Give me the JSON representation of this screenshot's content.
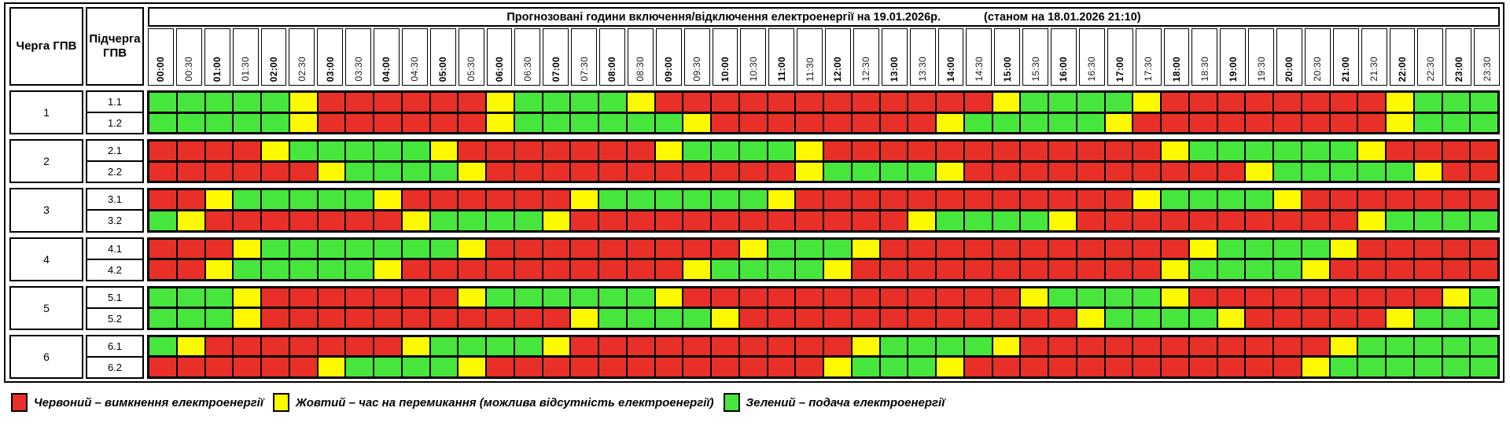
{
  "header": {
    "queue": "Черга ГПВ",
    "subqueue": "Підчерга ГПВ"
  },
  "title": {
    "main": "Прогнозовані години включення/відключення електроенергії на 19.01.2026р.",
    "as_of": "(станом на 18.01.2026 21:10)"
  },
  "colors": {
    "R": "#e82f28",
    "Y": "#fdf900",
    "G": "#46e63c",
    "border": "#000000"
  },
  "legend": [
    {
      "color_key": "R",
      "label": "Червоний – вимкнення електроенергії"
    },
    {
      "color_key": "Y",
      "label": "Жовтий – час на перемикання (можлива відсутність електроенергії)"
    },
    {
      "color_key": "G",
      "label": "Зелений – подача електроенергії"
    }
  ],
  "chart_data": {
    "type": "heatmap",
    "title": "Прогнозовані години включення/відключення електроенергії на 19.01.2026р.",
    "subtitle": "(станом на 18.01.2026 21:10)",
    "legend_position": "bottom",
    "cell_states": {
      "R": "вимкнення електроенергії",
      "Y": "час на перемикання (можлива відсутність електроенергії)",
      "G": "подача електроенергії"
    },
    "x_categories": [
      "00:00",
      "00:30",
      "01:00",
      "01:30",
      "02:00",
      "02:30",
      "03:00",
      "03:30",
      "04:00",
      "04:30",
      "05:00",
      "05:30",
      "06:00",
      "06:30",
      "07:00",
      "07:30",
      "08:00",
      "08:30",
      "09:00",
      "09:30",
      "10:00",
      "10:30",
      "11:00",
      "11:30",
      "12:00",
      "12:30",
      "13:00",
      "13:30",
      "14:00",
      "14:30",
      "15:00",
      "15:30",
      "16:00",
      "16:30",
      "17:00",
      "17:30",
      "18:00",
      "18:30",
      "19:00",
      "19:30",
      "20:00",
      "20:30",
      "21:00",
      "21:30",
      "22:00",
      "22:30",
      "23:00",
      "23:30"
    ],
    "groups": [
      {
        "queue": "1",
        "rows": [
          {
            "sub": "1.1",
            "cells": "GGGGGYRRRRRRYGGGGYRRRRRRRRRRRRYGGGGYRRRRRRRRYGGG"
          },
          {
            "sub": "1.2",
            "cells": "GGGGGYRRRRRRYGGGGGGYRRRRRRRRYGGGGGYRRRRRRRRRYGGG"
          }
        ]
      },
      {
        "queue": "2",
        "rows": [
          {
            "sub": "2.1",
            "cells": "RRRRYGGGGGYRRRRRRRYGGGGYRRRRRRRRRRRRYGGGGGGYRRRR"
          },
          {
            "sub": "2.2",
            "cells": "RRRRRRYGGGGYRRRRRRRRRRRYGGGGYRRRRRRRRRRYGGGGGYRR"
          }
        ]
      },
      {
        "queue": "3",
        "rows": [
          {
            "sub": "3.1",
            "cells": "RRYGGGGGYRRRRRRYGGGGGGYRRRRRRRRRRRRYGGGGYRRRRRRR"
          },
          {
            "sub": "3.2",
            "cells": "GYRRRRRRRYGGGGYRRRRRRRRRRRRYGGGGYRRRRRRRRRRYGGGG"
          }
        ]
      },
      {
        "queue": "4",
        "rows": [
          {
            "sub": "4.1",
            "cells": "RRRYGGGGGGGYRRRRRRRRRYGGGYRRRRRRRRRRRYGGGGYRRRRR"
          },
          {
            "sub": "4.2",
            "cells": "RRYGGGGGYRRRRRRRRRRYGGGGYRRRRRRRRRRRYGGGGYRRRRRR"
          }
        ]
      },
      {
        "queue": "5",
        "rows": [
          {
            "sub": "5.1",
            "cells": "GGGYRRRRRRRYGGGGGGYRRRRRRRRRRRRYGGGGYRRRRRRRRRYG"
          },
          {
            "sub": "5.2",
            "cells": "GGGYRRRRRRRRRRRYGGGGYRRRRRRRRRRRRYGGGGYRRRRRYGGG"
          }
        ]
      },
      {
        "queue": "6",
        "rows": [
          {
            "sub": "6.1",
            "cells": "GYRRRRRRRYGGGGYRRRRRRRRRRYGGGGYRRRRRRRRRRRYGGGGG"
          },
          {
            "sub": "6.2",
            "cells": "RRRRRRYGGGGYRRRRRRRRRRRRYGGGYRRRRRRRRRRRRYGGGGGG"
          }
        ]
      }
    ]
  }
}
